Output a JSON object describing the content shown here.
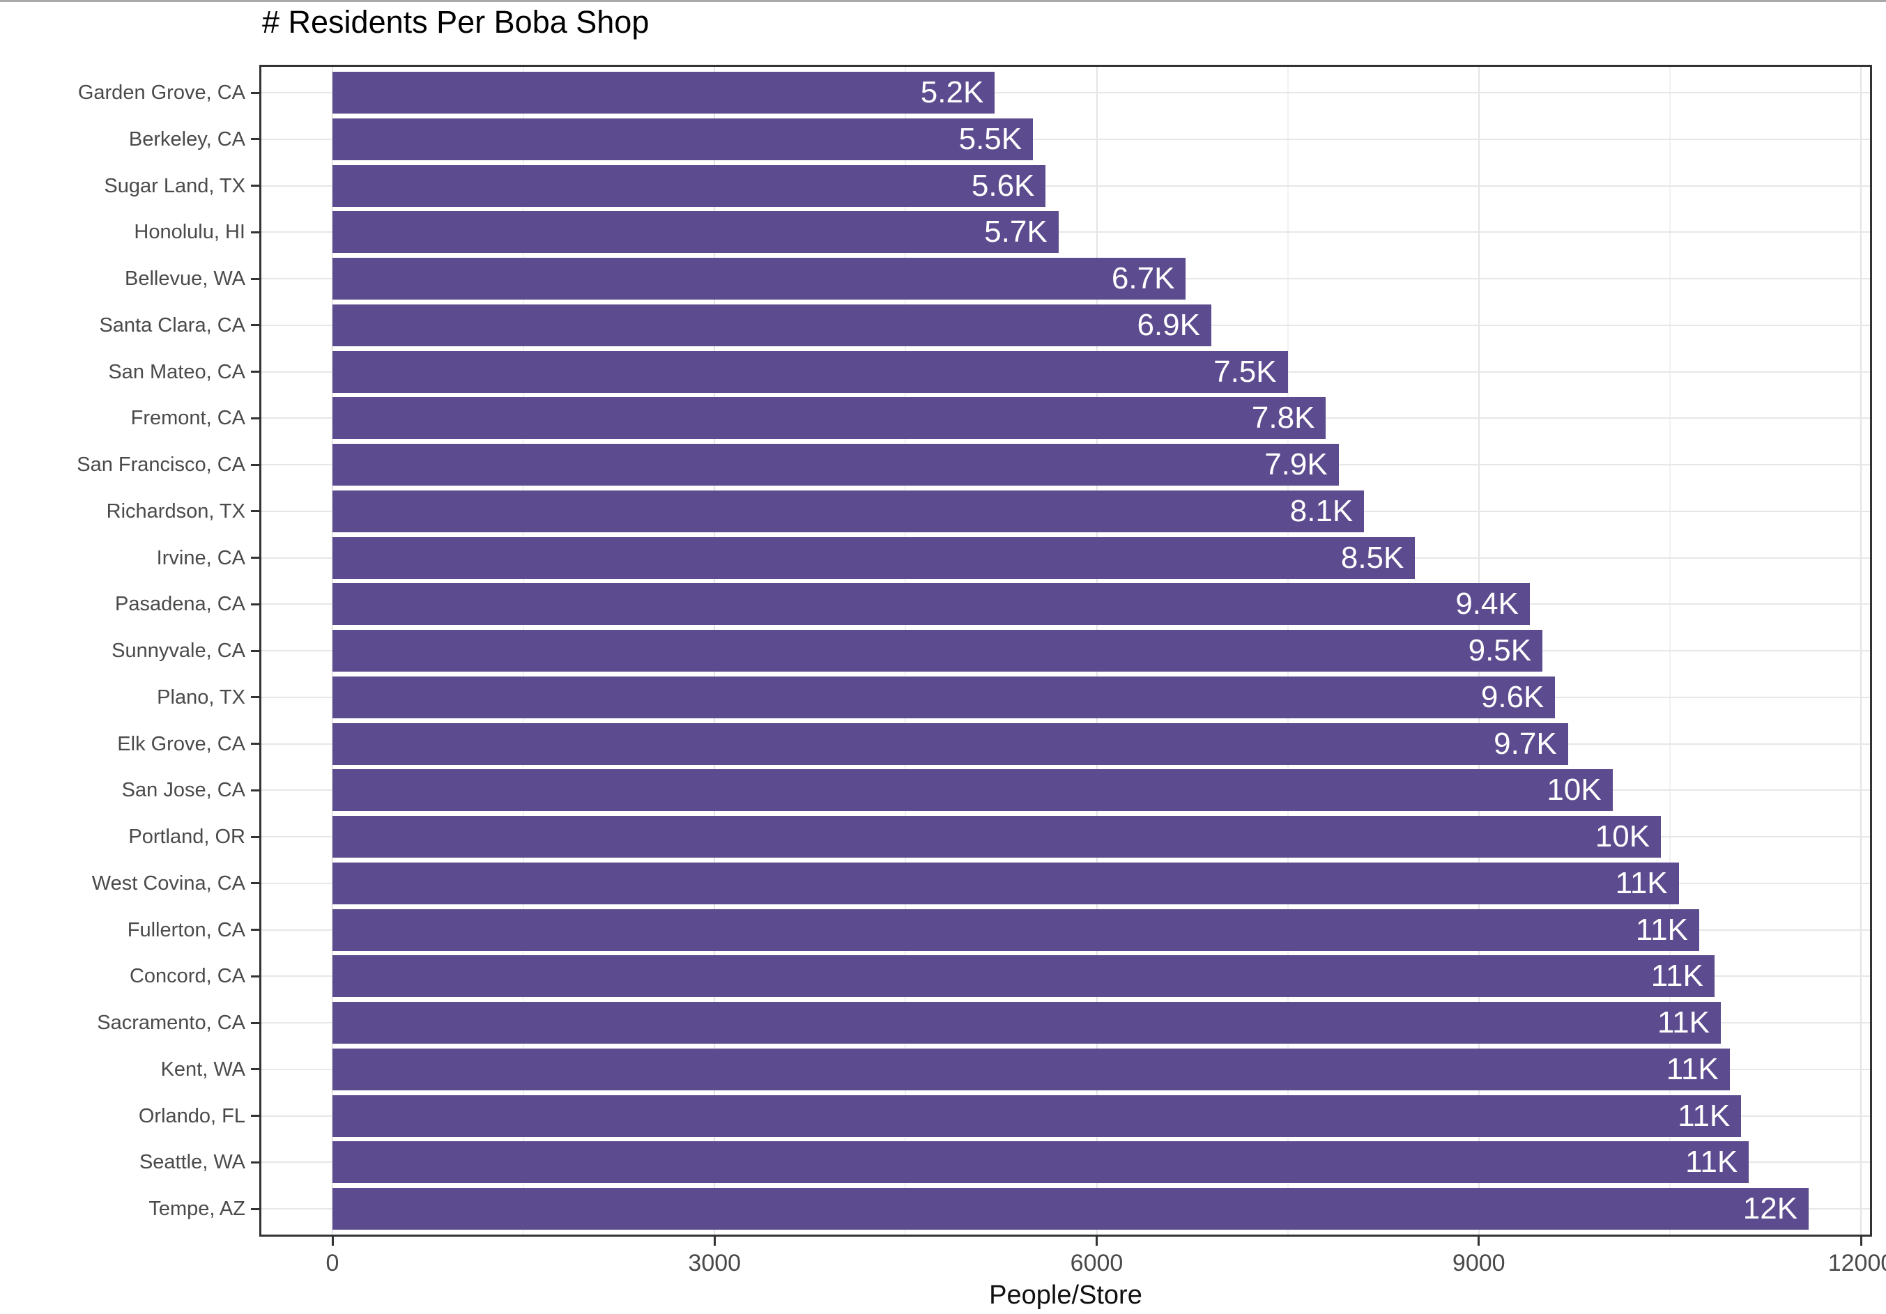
{
  "chart_data": {
    "type": "bar",
    "orientation": "horizontal",
    "title": "# Residents Per Boba Shop",
    "xlabel": "People/Store",
    "ylabel": "",
    "xlim": [
      0,
      12000
    ],
    "x_major_ticks": [
      0,
      3000,
      6000,
      9000,
      12000
    ],
    "x_tick_labels": [
      "0",
      "3000",
      "6000",
      "9000",
      "12000"
    ],
    "x_minor_gridlines": [
      1500,
      4500,
      7500,
      10500
    ],
    "grid": true,
    "legend": false,
    "categories": [
      "Garden Grove, CA",
      "Berkeley, CA",
      "Sugar Land, TX",
      "Honolulu, HI",
      "Bellevue, WA",
      "Santa Clara, CA",
      "San Mateo, CA",
      "Fremont, CA",
      "San Francisco, CA",
      "Richardson, TX",
      "Irvine, CA",
      "Pasadena, CA",
      "Sunnyvale, CA",
      "Plano, TX",
      "Elk Grove, CA",
      "San Jose, CA",
      "Portland, OR",
      "West Covina, CA",
      "Fullerton, CA",
      "Concord, CA",
      "Sacramento, CA",
      "Kent, WA",
      "Orlando, FL",
      "Seattle, WA",
      "Tempe, AZ"
    ],
    "values": [
      5200,
      5500,
      5600,
      5700,
      6700,
      6900,
      7500,
      7800,
      7900,
      8100,
      8500,
      9400,
      9500,
      9600,
      9700,
      10050,
      10430,
      10570,
      10730,
      10850,
      10900,
      10970,
      11060,
      11120,
      11590
    ],
    "bar_labels": [
      "5.2K",
      "5.5K",
      "5.6K",
      "5.7K",
      "6.7K",
      "6.9K",
      "7.5K",
      "7.8K",
      "7.9K",
      "8.1K",
      "8.5K",
      "9.4K",
      "9.5K",
      "9.6K",
      "9.7K",
      "10K",
      "10K",
      "11K",
      "11K",
      "11K",
      "11K",
      "11K",
      "11K",
      "11K",
      "12K"
    ],
    "colors": {
      "bar": "#5c4b8e",
      "bar_label_text": "#ffffff",
      "axis_text": "#4a4a4a",
      "title_text": "#000000",
      "grid_major": "#e4e4e4",
      "grid_minor": "#f1f1f1",
      "panel_border": "#333333",
      "background": "#ffffff"
    }
  }
}
